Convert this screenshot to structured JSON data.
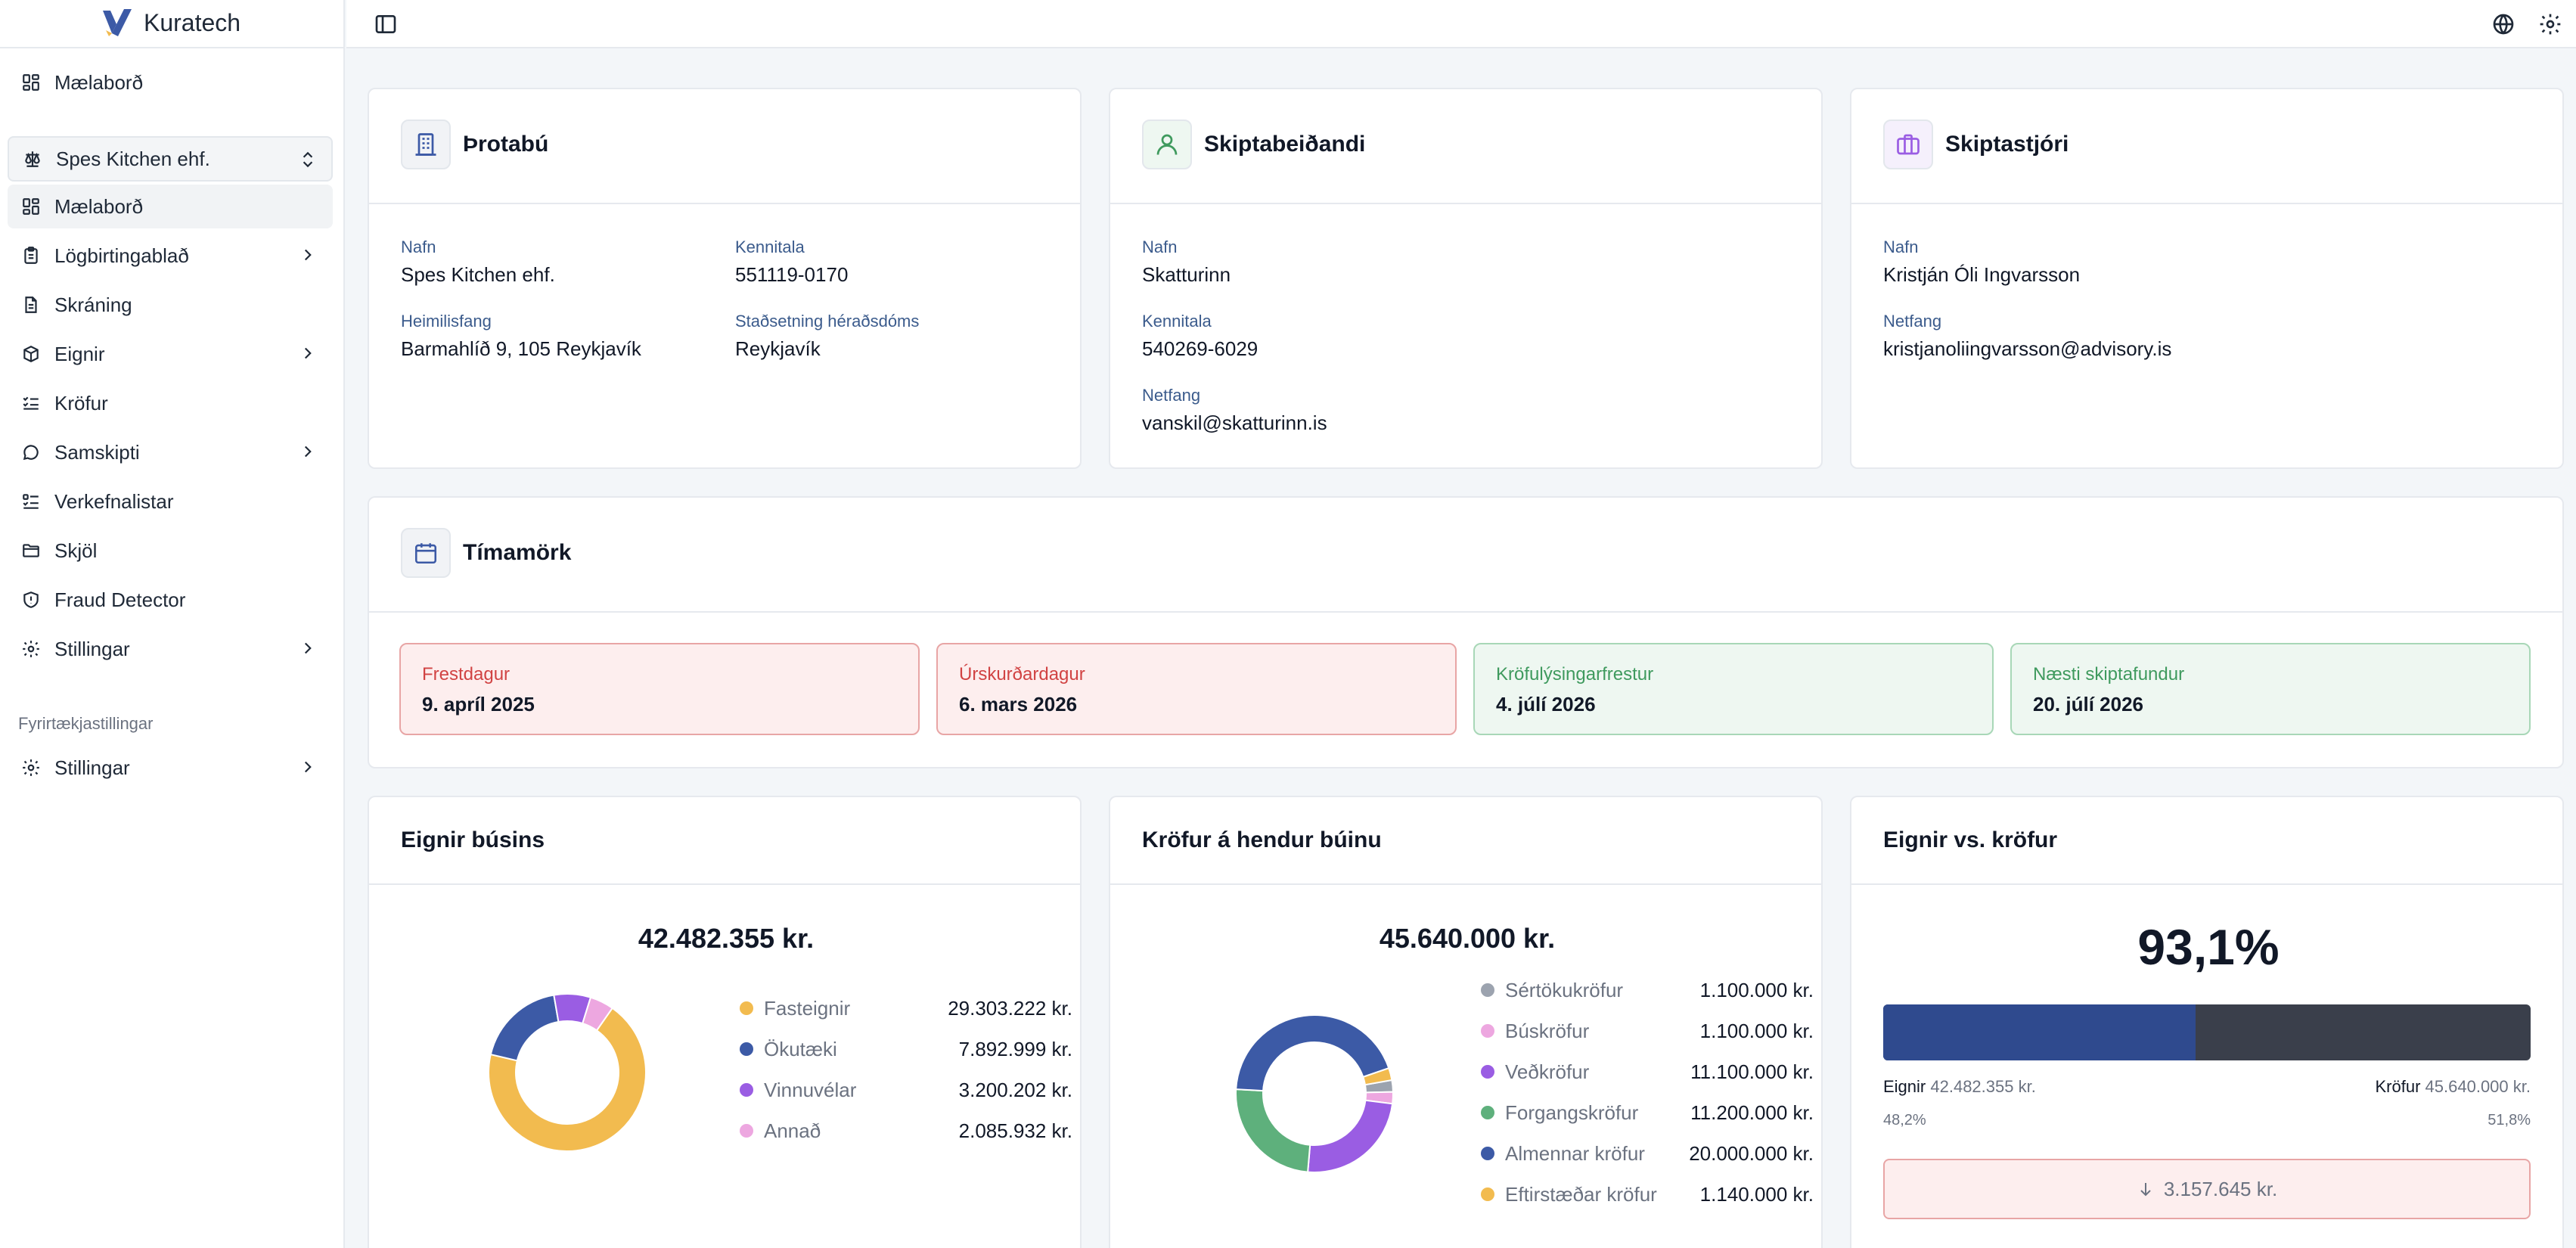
{
  "app": {
    "brand": "Kuratech"
  },
  "sidebar": {
    "top_item": "Mælaborð",
    "org": "Spes Kitchen ehf.",
    "items": [
      {
        "label": "Mælaborð",
        "icon": "dashboard-icon",
        "chevron": false,
        "active": true
      },
      {
        "label": "Lögbirtingablað",
        "icon": "clipboard-icon",
        "chevron": true
      },
      {
        "label": "Skráning",
        "icon": "file-icon",
        "chevron": false
      },
      {
        "label": "Eignir",
        "icon": "box-icon",
        "chevron": true
      },
      {
        "label": "Kröfur",
        "icon": "checklist-icon",
        "chevron": false
      },
      {
        "label": "Samskipti",
        "icon": "chat-icon",
        "chevron": true
      },
      {
        "label": "Verkefnalistar",
        "icon": "tasklist-icon",
        "chevron": false
      },
      {
        "label": "Skjöl",
        "icon": "folder-icon",
        "chevron": false
      },
      {
        "label": "Fraud Detector",
        "icon": "shield-icon",
        "chevron": false
      },
      {
        "label": "Stillingar",
        "icon": "gear-icon",
        "chevron": true
      }
    ],
    "company_section_label": "Fyrirtækjastillingar",
    "company_settings": "Stillingar"
  },
  "estate": {
    "title": "Þrotabú",
    "name_label": "Nafn",
    "name": "Spes Kitchen ehf.",
    "kt_label": "Kennitala",
    "kt": "551119-0170",
    "address_label": "Heimilisfang",
    "address": "Barmahlíð 9, 105 Reykjavík",
    "court_label": "Staðsetning héraðsdóms",
    "court": "Reykjavík"
  },
  "requester": {
    "title": "Skiptabeiðandi",
    "name_label": "Nafn",
    "name": "Skatturinn",
    "kt_label": "Kennitala",
    "kt": "540269-6029",
    "email_label": "Netfang",
    "email": "vanskil@skatturinn.is"
  },
  "administrator": {
    "title": "Skiptastjóri",
    "name_label": "Nafn",
    "name": "Kristján Óli Ingvarsson",
    "email_label": "Netfang",
    "email": "kristjanoliingvarsson@advisory.is"
  },
  "deadlines": {
    "title": "Tímamörk",
    "items": [
      {
        "label": "Frestdagur",
        "date": "9. apríl 2025",
        "status": "red"
      },
      {
        "label": "Úrskurðardagur",
        "date": "6. mars 2026",
        "status": "red"
      },
      {
        "label": "Kröfulýsingarfrestur",
        "date": "4. júlí 2026",
        "status": "green"
      },
      {
        "label": "Næsti skiptafundur",
        "date": "20. júlí 2026",
        "status": "green"
      }
    ]
  },
  "assets": {
    "title": "Eignir búsins",
    "total": "42.482.355 kr.",
    "legend": [
      {
        "name": "Fasteignir",
        "value": "29.303.222 kr.",
        "color": "#f2bb4f",
        "amount": 29303222
      },
      {
        "name": "Ökutæki",
        "value": "7.892.999 kr.",
        "color": "#3c5aa6",
        "amount": 7892999
      },
      {
        "name": "Vinnuvélar",
        "value": "3.200.202 kr.",
        "color": "#9a5de3",
        "amount": 3200202
      },
      {
        "name": "Annað",
        "value": "2.085.932 kr.",
        "color": "#eda7e0",
        "amount": 2085932
      }
    ]
  },
  "claims": {
    "title": "Kröfur á hendur búinu",
    "total": "45.640.000 kr.",
    "legend": [
      {
        "name": "Sértökukröfur",
        "value": "1.100.000 kr.",
        "color": "#9ca3af",
        "amount": 1100000
      },
      {
        "name": "Búskröfur",
        "value": "1.100.000 kr.",
        "color": "#eda7e0",
        "amount": 1100000
      },
      {
        "name": "Veðkröfur",
        "value": "11.100.000 kr.",
        "color": "#9a5de3",
        "amount": 11100000
      },
      {
        "name": "Forgangskröfur",
        "value": "11.200.000 kr.",
        "color": "#5eb07c",
        "amount": 11200000
      },
      {
        "name": "Almennar kröfur",
        "value": "20.000.000 kr.",
        "color": "#3c5aa6",
        "amount": 20000000
      },
      {
        "name": "Eftirstæðar kröfur",
        "value": "1.140.000 kr.",
        "color": "#f2bb4f",
        "amount": 1140000
      }
    ]
  },
  "comparison": {
    "title": "Eignir vs. kröfur",
    "ratio": "93,1%",
    "assets_label": "Eignir",
    "assets_value": "42.482.355 kr.",
    "assets_pct": "48,2%",
    "claims_label": "Kröfur",
    "claims_value": "45.640.000 kr.",
    "claims_pct": "51,8%",
    "assets_fraction": 0.482,
    "difference": "3.157.645 kr."
  }
}
